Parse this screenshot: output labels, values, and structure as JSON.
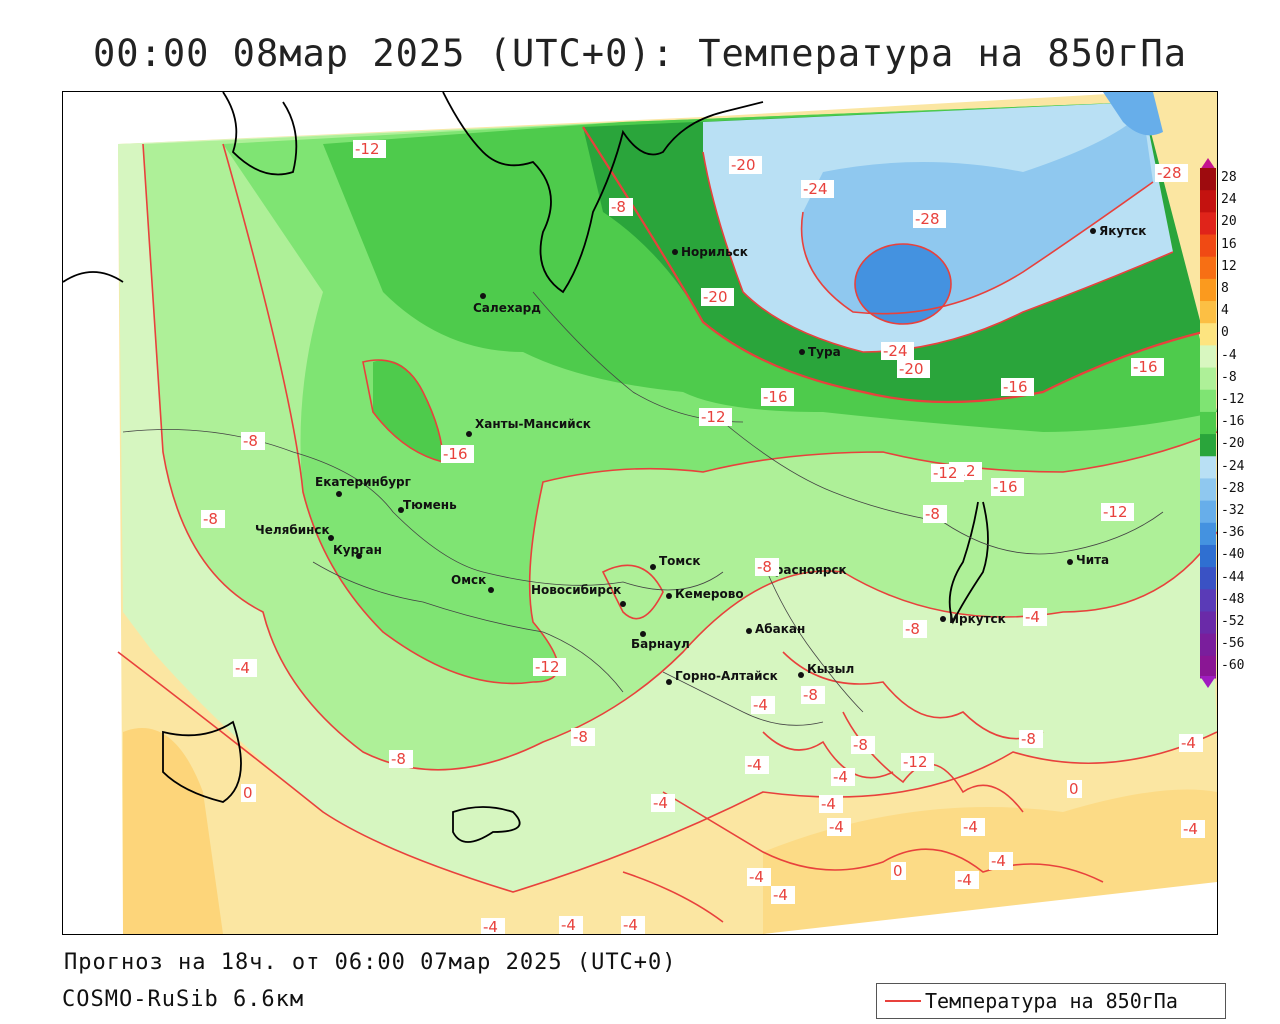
{
  "title": "00:00 08мар 2025 (UTC+0): Температура на 850гПа",
  "footer": {
    "forecast": "Прогноз на 18ч. от 06:00 07мар 2025 (UTC+0)",
    "model": "COSMO-RuSib 6.6км"
  },
  "legend": {
    "label": "Температура на 850гПа",
    "line_color": "#e8413c"
  },
  "colorbar": {
    "ticks": [
      "28",
      "24",
      "20",
      "16",
      "12",
      "8",
      "4",
      "0",
      "-4",
      "-8",
      "-12",
      "-16",
      "-20",
      "-24",
      "-28",
      "-32",
      "-36",
      "-40",
      "-44",
      "-48",
      "-52",
      "-56",
      "-60"
    ],
    "colors": [
      "#9e0b0e",
      "#c4120f",
      "#e0241a",
      "#f04a14",
      "#f76f14",
      "#fb9a1e",
      "#fcbf44",
      "#fde480",
      "#d8f7c0",
      "#aef098",
      "#7fe473",
      "#4ecb4c",
      "#2aa53b",
      "#b9e0f4",
      "#8fc8ef",
      "#67aeea",
      "#4492e0",
      "#2f6fd1",
      "#3a52c4",
      "#5a3bb7",
      "#6a2aa8",
      "#7a1e9c",
      "#8a1694"
    ]
  },
  "cities": [
    {
      "name": "Норильск"
    },
    {
      "name": "Якутск"
    },
    {
      "name": "Салехард"
    },
    {
      "name": "Тура"
    },
    {
      "name": "Ханты-Мансийск"
    },
    {
      "name": "Екатеринбург"
    },
    {
      "name": "Тюмень"
    },
    {
      "name": "Челябинск"
    },
    {
      "name": "Курган"
    },
    {
      "name": "Омск"
    },
    {
      "name": "Новосибирск"
    },
    {
      "name": "Томск"
    },
    {
      "name": "Кемерово"
    },
    {
      "name": "Барнаул"
    },
    {
      "name": "Красноярск"
    },
    {
      "name": "Абакан"
    },
    {
      "name": "Горно-Алтайск"
    },
    {
      "name": "Кызыл"
    },
    {
      "name": "Иркутск"
    },
    {
      "name": "Чита"
    }
  ],
  "isotherm_labels": [
    "-12",
    "-20",
    "-24",
    "-28",
    "-28",
    "-8",
    "-20",
    "-24",
    "-20",
    "-16",
    "-12",
    "-16",
    "-16",
    "-16",
    "-12",
    "-16",
    "-12",
    "-8",
    "-8",
    "-12",
    "-8",
    "-8",
    "-4",
    "-8",
    "-4",
    "-12",
    "-8",
    "-8",
    "-8",
    "-4",
    "-4",
    "-8",
    "-4",
    "-4",
    "-4",
    "-12",
    "-8",
    "-4",
    "-4",
    "-4",
    "0",
    "-4",
    "-4",
    "0",
    "-4",
    "-4",
    "-4",
    "0",
    "-4",
    "-4",
    "-4"
  ]
}
